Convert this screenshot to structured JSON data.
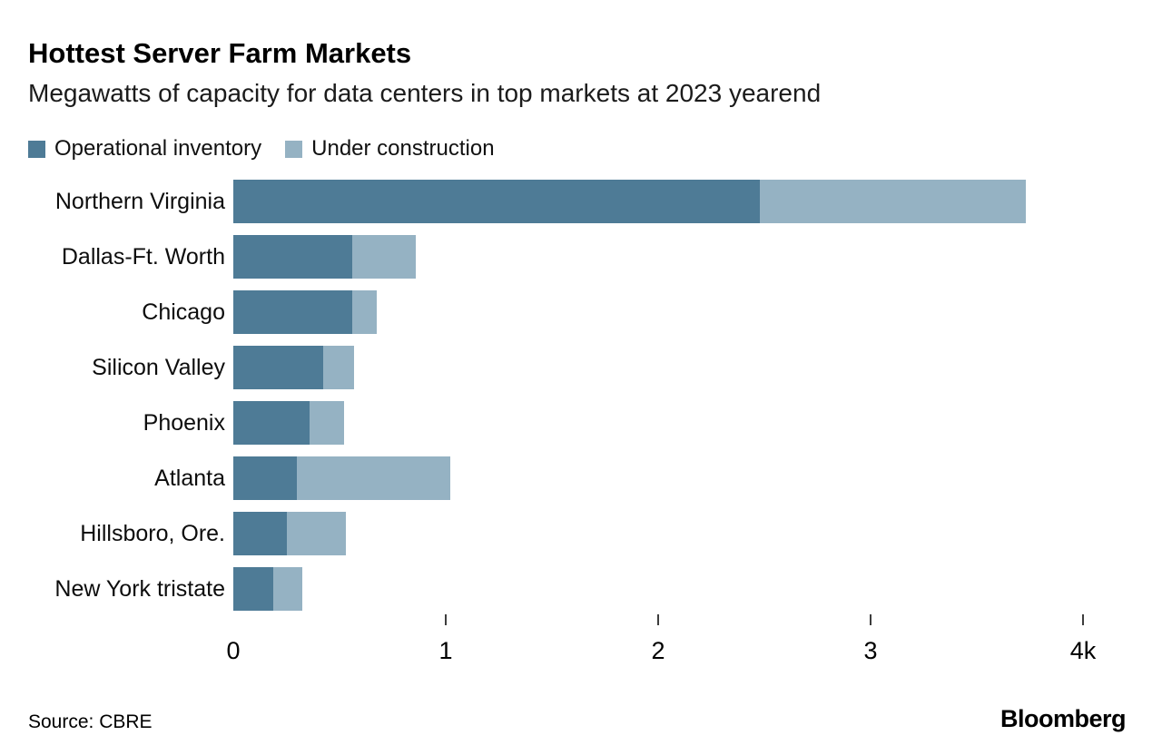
{
  "header": {
    "title": "Hottest Server Farm Markets",
    "subtitle": "Megawatts of capacity for data centers in top markets at 2023 yearend"
  },
  "colors": {
    "operational": "#4e7b96",
    "under_construction": "#95b2c3"
  },
  "chart_data": {
    "type": "bar",
    "orientation": "horizontal",
    "stacked": true,
    "title": "Hottest Server Farm Markets",
    "subtitle": "Megawatts of capacity for data centers in top markets at 2023 yearend",
    "unit": "megawatts",
    "categories": [
      "Northern Virginia",
      "Dallas-Ft. Worth",
      "Chicago",
      "Silicon Valley",
      "Phoenix",
      "Atlanta",
      "Hillsboro, Ore.",
      "New York tristate"
    ],
    "series": [
      {
        "name": "Operational inventory",
        "color": "#4e7b96",
        "values": [
          2480,
          560,
          560,
          425,
          360,
          300,
          250,
          190
        ]
      },
      {
        "name": "Under construction",
        "color": "#95b2c3",
        "values": [
          1250,
          300,
          115,
          145,
          160,
          720,
          280,
          135
        ]
      }
    ],
    "x_axis": {
      "range": [
        0,
        4000
      ],
      "tick_values": [
        0,
        1000,
        2000,
        3000,
        4000
      ],
      "tick_labels": [
        "0",
        "1",
        "2",
        "3",
        "4k"
      ],
      "ticks_with_marks": [
        1000,
        2000,
        3000,
        4000
      ]
    },
    "grid": false,
    "legend_position": "top"
  },
  "footer": {
    "source": "Source: CBRE",
    "brand": "Bloomberg"
  }
}
